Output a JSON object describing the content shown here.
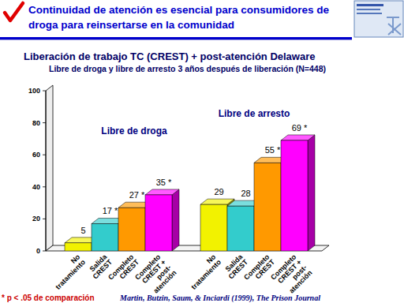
{
  "header": {
    "title": "Continuidad de atención es esencial para consumidores de droga para reinsertarse en la comunidad"
  },
  "chart_data": {
    "type": "bar",
    "title": "Liberación de trabajo TC (CREST) + post-atención Delaware",
    "subtitle": "Libre de droga y libre de arresto 3 años después de liberación (N=448)",
    "categories": [
      "Libre de droga",
      "Libre de arresto"
    ],
    "series": [
      {
        "name": "No tratamiento",
        "color": "#f2f200",
        "values": [
          5,
          29
        ],
        "value_labels": [
          "5",
          "29"
        ]
      },
      {
        "name": "Salida CREST",
        "color": "#33cccc",
        "values": [
          17,
          28
        ],
        "value_labels": [
          "17 *",
          "28"
        ]
      },
      {
        "name": "Completo CREST",
        "color": "#ff9900",
        "values": [
          27,
          55
        ],
        "value_labels": [
          "27 *",
          "55 *"
        ]
      },
      {
        "name": "Completo CREST + post-atención",
        "color": "#ff00ff",
        "values": [
          35,
          69
        ],
        "value_labels": [
          "35 *",
          "69 *"
        ]
      }
    ],
    "ylim": [
      0,
      100
    ],
    "yticks": [
      0,
      20,
      40,
      60,
      80,
      100
    ],
    "grid": false,
    "data_labels": true,
    "annotations": [
      "* p < .05 de comparación",
      "Martin, Butzin, Saum, & Inciardi (1999), The Prison Journal"
    ]
  }
}
